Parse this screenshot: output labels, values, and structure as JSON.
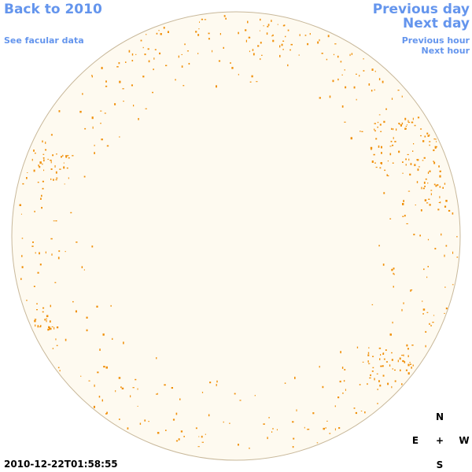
{
  "nav": {
    "back_label": "Back to 2010",
    "facular_label": "See facular data",
    "prev_day_label": "Previous day",
    "next_day_label": "Next day",
    "prev_hour_label": "Previous hour",
    "next_hour_label": "Next hour"
  },
  "compass": {
    "north": "N",
    "east": "E",
    "center": "+",
    "west": "W",
    "south": "S"
  },
  "timestamp": "2010-12-22T01:58:55",
  "colors": {
    "disk_fill": "#fefaf0",
    "disk_edge": "#c8b89a",
    "feature": "#f0900a",
    "link": "#6495ed"
  }
}
